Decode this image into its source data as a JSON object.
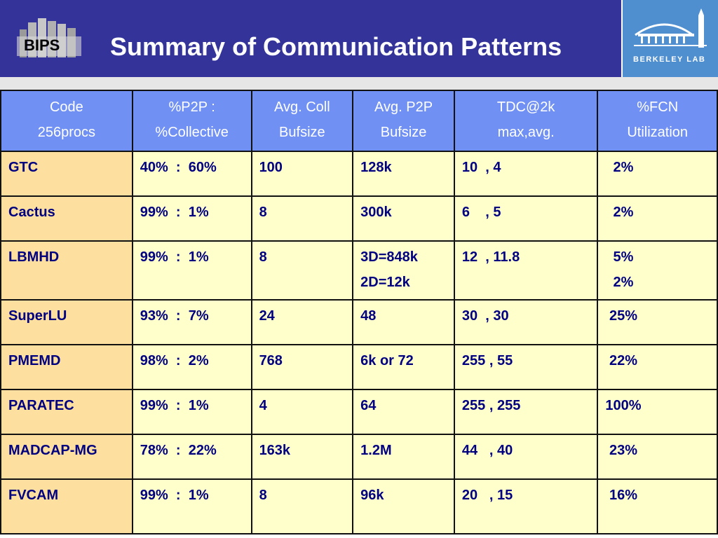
{
  "header": {
    "logo_text": "BIPS",
    "title": "Summary of Communication Patterns",
    "lab_logo_text": "BERKELEY LAB"
  },
  "table": {
    "columns": [
      {
        "line1": "Code",
        "line2": "256procs"
      },
      {
        "line1": "%P2P :",
        "line2": "%Collective"
      },
      {
        "line1": "Avg. Coll",
        "line2": "Bufsize"
      },
      {
        "line1": "Avg. P2P",
        "line2": "Bufsize"
      },
      {
        "line1": "TDC@2k",
        "line2": "max,avg."
      },
      {
        "line1": "%FCN",
        "line2": "Utilization"
      }
    ],
    "rows": [
      {
        "code": "GTC",
        "ratio": "40%  :  60%",
        "coll": "100",
        "p2p": "128k",
        "p2p2": "",
        "tdc": "10  , 4",
        "fcn": "  2%",
        "fcn2": ""
      },
      {
        "code": "Cactus",
        "ratio": "99%  :  1%",
        "coll": "8",
        "p2p": "300k",
        "p2p2": "",
        "tdc": "6    , 5",
        "fcn": "  2%",
        "fcn2": ""
      },
      {
        "code": "LBMHD",
        "ratio": "99%  :  1%",
        "coll": "8",
        "p2p": "3D=848k",
        "p2p2": "2D=12k",
        "tdc": "12  , 11.8",
        "fcn": "  5%",
        "fcn2": "  2%"
      },
      {
        "code": "SuperLU",
        "ratio": "93%  :  7%",
        "coll": "24",
        "p2p": "48",
        "p2p2": "",
        "tdc": "30  , 30",
        "fcn": " 25%",
        "fcn2": ""
      },
      {
        "code": "PMEMD",
        "ratio": "98%  :  2%",
        "coll": "768",
        "p2p": "6k or 72",
        "p2p2": "",
        "tdc": "255 , 55",
        "fcn": " 22%",
        "fcn2": ""
      },
      {
        "code": "PARATEC",
        "ratio": "99%  :  1%",
        "coll": "4",
        "p2p": "64",
        "p2p2": "",
        "tdc": "255 , 255",
        "fcn": "100%",
        "fcn2": ""
      },
      {
        "code": "MADCAP-MG",
        "ratio": "78%  :  22%",
        "coll": "163k",
        "p2p": "1.2M",
        "p2p2": "",
        "tdc": "44   , 40",
        "fcn": " 23%",
        "fcn2": ""
      },
      {
        "code": "FVCAM",
        "ratio": "99%  :  1%",
        "coll": "8",
        "p2p": "96k",
        "p2p2": "",
        "tdc": "20   , 15",
        "fcn": " 16%",
        "fcn2": ""
      }
    ]
  },
  "colors": {
    "header_bg": "#333399",
    "table_header_bg": "#7090f4",
    "cell_bg": "#ffffcc",
    "code_cell_bg": "#fde0a0",
    "cell_text": "#000080"
  }
}
